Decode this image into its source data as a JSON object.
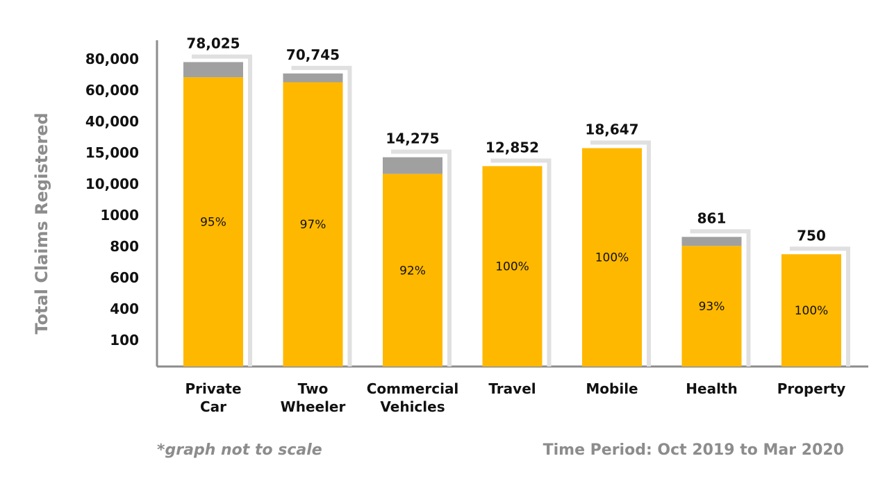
{
  "chart_data": {
    "type": "bar",
    "stacked": true,
    "ylabel": "Total Claims Registered",
    "ytick_labels": [
      "80,000",
      "60,000",
      "40,000",
      "15,000",
      "10,000",
      "1000",
      "800",
      "600",
      "400",
      "100"
    ],
    "categories": [
      [
        "Private",
        "Car"
      ],
      [
        "Two",
        "Wheeler"
      ],
      [
        "Commercial",
        "Vehicles"
      ],
      [
        "Travel"
      ],
      [
        "Mobile"
      ],
      [
        "Health"
      ],
      [
        "Property"
      ]
    ],
    "totals": [
      78025,
      70745,
      14275,
      12852,
      18647,
      861,
      750
    ],
    "total_labels": [
      "78,025",
      "70,745",
      "14,275",
      "12,852",
      "18,647",
      "861",
      "750"
    ],
    "percent_labels": [
      "95%",
      "97%",
      "92%",
      "100%",
      "100%",
      "93%",
      "100%"
    ],
    "percent_values": [
      95,
      97,
      92,
      100,
      100,
      93,
      100
    ],
    "note": "*graph not to scale",
    "time_period": "Time Period: Oct 2019 to Mar 2020",
    "colors": {
      "primary": "#FFB800",
      "remainder": "#A0A0A0",
      "shadow": "#E0E0E0",
      "axis": "#8C8C8C"
    }
  }
}
